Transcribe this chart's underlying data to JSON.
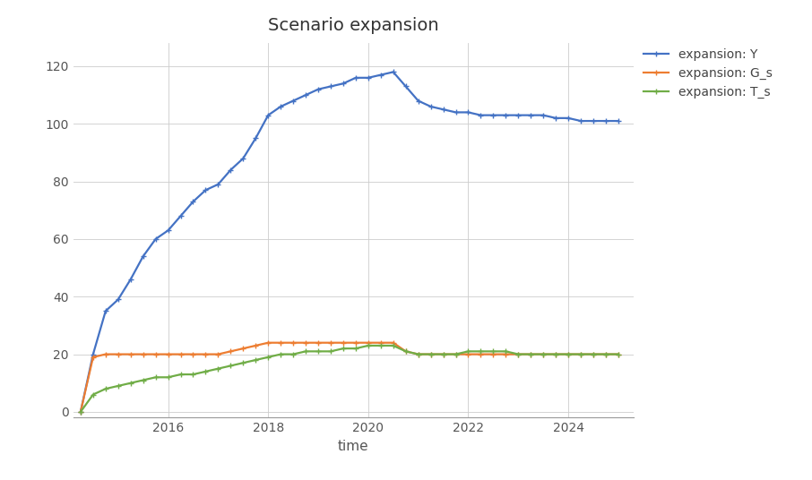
{
  "title": "Scenario expansion",
  "xlabel": "time",
  "ylabel": "",
  "background_color": "#ffffff",
  "plot_background": "#ffffff",
  "grid_color": "#cccccc",
  "series": [
    {
      "label": "expansion: Y",
      "color": "#4472c4",
      "marker": "+",
      "data_x": [
        2014.25,
        2014.5,
        2014.75,
        2015.0,
        2015.25,
        2015.5,
        2015.75,
        2016.0,
        2016.25,
        2016.5,
        2016.75,
        2017.0,
        2017.25,
        2017.5,
        2017.75,
        2018.0,
        2018.25,
        2018.5,
        2018.75,
        2019.0,
        2019.25,
        2019.5,
        2019.75,
        2020.0,
        2020.25,
        2020.5,
        2020.75,
        2021.0,
        2021.25,
        2021.5,
        2021.75,
        2022.0,
        2022.25,
        2022.5,
        2022.75,
        2023.0,
        2023.25,
        2023.5,
        2023.75,
        2024.0,
        2024.25,
        2024.5,
        2024.75,
        2025.0
      ],
      "data_y": [
        0,
        20,
        35,
        39,
        46,
        54,
        60,
        63,
        68,
        73,
        77,
        79,
        84,
        88,
        95,
        103,
        106,
        108,
        110,
        112,
        113,
        114,
        116,
        116,
        117,
        118,
        113,
        108,
        106,
        105,
        104,
        104,
        103,
        103,
        103,
        103,
        103,
        103,
        102,
        102,
        101,
        101,
        101,
        101
      ]
    },
    {
      "label": "expansion: G_s",
      "color": "#ed7d31",
      "marker": "+",
      "data_x": [
        2014.25,
        2014.5,
        2014.75,
        2015.0,
        2015.25,
        2015.5,
        2015.75,
        2016.0,
        2016.25,
        2016.5,
        2016.75,
        2017.0,
        2017.25,
        2017.5,
        2017.75,
        2018.0,
        2018.25,
        2018.5,
        2018.75,
        2019.0,
        2019.25,
        2019.5,
        2019.75,
        2020.0,
        2020.25,
        2020.5,
        2020.75,
        2021.0,
        2021.25,
        2021.5,
        2021.75,
        2022.0,
        2022.25,
        2022.5,
        2022.75,
        2023.0,
        2023.25,
        2023.5,
        2023.75,
        2024.0,
        2024.25,
        2024.5,
        2024.75,
        2025.0
      ],
      "data_y": [
        0,
        19,
        20,
        20,
        20,
        20,
        20,
        20,
        20,
        20,
        20,
        20,
        21,
        22,
        23,
        24,
        24,
        24,
        24,
        24,
        24,
        24,
        24,
        24,
        24,
        24,
        21,
        20,
        20,
        20,
        20,
        20,
        20,
        20,
        20,
        20,
        20,
        20,
        20,
        20,
        20,
        20,
        20,
        20
      ]
    },
    {
      "label": "expansion: T_s",
      "color": "#70ad47",
      "marker": "+",
      "data_x": [
        2014.25,
        2014.5,
        2014.75,
        2015.0,
        2015.25,
        2015.5,
        2015.75,
        2016.0,
        2016.25,
        2016.5,
        2016.75,
        2017.0,
        2017.25,
        2017.5,
        2017.75,
        2018.0,
        2018.25,
        2018.5,
        2018.75,
        2019.0,
        2019.25,
        2019.5,
        2019.75,
        2020.0,
        2020.25,
        2020.5,
        2020.75,
        2021.0,
        2021.25,
        2021.5,
        2021.75,
        2022.0,
        2022.25,
        2022.5,
        2022.75,
        2023.0,
        2023.25,
        2023.5,
        2023.75,
        2024.0,
        2024.25,
        2024.5,
        2024.75,
        2025.0
      ],
      "data_y": [
        0,
        6,
        8,
        9,
        10,
        11,
        12,
        12,
        13,
        13,
        14,
        15,
        16,
        17,
        18,
        19,
        20,
        20,
        21,
        21,
        21,
        22,
        22,
        23,
        23,
        23,
        21,
        20,
        20,
        20,
        20,
        21,
        21,
        21,
        21,
        20,
        20,
        20,
        20,
        20,
        20,
        20,
        20,
        20
      ]
    }
  ],
  "xlim": [
    2014.1,
    2025.3
  ],
  "ylim": [
    -2,
    128
  ],
  "xticks": [
    2016,
    2018,
    2020,
    2022,
    2024
  ],
  "yticks": [
    0,
    20,
    40,
    60,
    80,
    100,
    120
  ],
  "title_fontsize": 14,
  "axis_fontsize": 11,
  "tick_fontsize": 10,
  "legend_fontsize": 10,
  "linewidth": 1.6,
  "markersize": 4
}
